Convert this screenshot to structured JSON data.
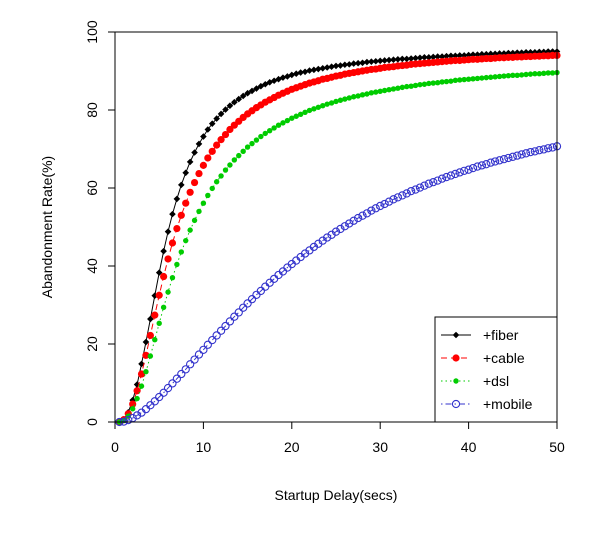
{
  "chart_data": {
    "type": "line",
    "title": "",
    "xlabel": "Startup Delay(secs)",
    "ylabel": "Abandonment Rate(%)",
    "xlim": [
      0,
      50
    ],
    "ylim": [
      0,
      100
    ],
    "x_ticks": [
      "0",
      "10",
      "20",
      "30",
      "40",
      "50"
    ],
    "y_ticks": [
      "0",
      "20",
      "40",
      "60",
      "80",
      "100"
    ],
    "x_tick_values": [
      0,
      10,
      20,
      30,
      40,
      50
    ],
    "y_tick_values": [
      0,
      20,
      40,
      60,
      80,
      100
    ],
    "grid": false,
    "legend_position": "bottom-right",
    "x": [
      0.5,
      1,
      1.5,
      2,
      2.5,
      3,
      3.5,
      4,
      4.5,
      5,
      5.5,
      6,
      6.5,
      7,
      7.5,
      8,
      8.5,
      9,
      9.5,
      10,
      10.5,
      11,
      11.5,
      12,
      12.5,
      13,
      13.5,
      14,
      14.5,
      15,
      15.5,
      16,
      16.5,
      17,
      17.5,
      18,
      18.5,
      19,
      19.5,
      20,
      20.5,
      21,
      21.5,
      22,
      22.5,
      23,
      23.5,
      24,
      24.5,
      25,
      25.5,
      26,
      26.5,
      27,
      27.5,
      28,
      28.5,
      29,
      29.5,
      30,
      30.5,
      31,
      31.5,
      32,
      32.5,
      33,
      33.5,
      34,
      34.5,
      35,
      35.5,
      36,
      36.5,
      37,
      37.5,
      38,
      38.5,
      39,
      39.5,
      40,
      40.5,
      41,
      41.5,
      42,
      42.5,
      43,
      43.5,
      44,
      44.5,
      45,
      45.5,
      46,
      46.5,
      47,
      47.5,
      48,
      48.5,
      49,
      49.5,
      50
    ],
    "series": [
      {
        "name": "+fiber",
        "color": "#000000",
        "line_style": "solid",
        "marker": "diamond",
        "values": [
          0.0,
          0.7,
          2.5,
          5.6,
          9.6,
          14.9,
          20.5,
          26.4,
          32.4,
          38.3,
          43.8,
          48.8,
          53.3,
          57.2,
          60.8,
          63.9,
          66.7,
          69.1,
          71.3,
          73.2,
          75.0,
          76.5,
          77.8,
          79.0,
          80.1,
          81.1,
          82.0,
          82.8,
          83.6,
          84.3,
          84.9,
          85.5,
          86.1,
          86.6,
          87.1,
          87.5,
          87.9,
          88.3,
          88.6,
          89.0,
          89.3,
          89.6,
          89.8,
          90.1,
          90.3,
          90.5,
          90.7,
          90.9,
          91.1,
          91.3,
          91.4,
          91.6,
          91.7,
          91.9,
          92.0,
          92.1,
          92.3,
          92.4,
          92.5,
          92.6,
          92.7,
          92.8,
          92.9,
          93.0,
          93.1,
          93.1,
          93.2,
          93.3,
          93.4,
          93.5,
          93.5,
          93.6,
          93.7,
          93.7,
          93.8,
          93.9,
          93.9,
          94.0,
          94.0,
          94.1,
          94.2,
          94.2,
          94.3,
          94.3,
          94.4,
          94.4,
          94.5,
          94.5,
          94.6,
          94.6,
          94.7,
          94.7,
          94.8,
          94.8,
          94.8,
          94.9,
          94.9,
          95.0,
          95.0,
          95.0
        ]
      },
      {
        "name": "+cable",
        "color": "#ff0000",
        "line_style": "dashed",
        "marker": "circle",
        "values": [
          0.0,
          0.6,
          2.1,
          4.6,
          8.0,
          12.3,
          17.1,
          22.2,
          27.4,
          32.5,
          37.3,
          41.8,
          45.9,
          49.6,
          53.0,
          56.1,
          58.9,
          61.4,
          63.7,
          65.8,
          67.7,
          69.4,
          71.0,
          72.4,
          73.7,
          75.0,
          76.1,
          77.1,
          78.1,
          79.0,
          79.8,
          80.6,
          81.3,
          82.0,
          82.6,
          83.2,
          83.8,
          84.3,
          84.8,
          85.3,
          85.7,
          86.1,
          86.5,
          86.9,
          87.2,
          87.5,
          87.9,
          88.1,
          88.4,
          88.7,
          88.9,
          89.2,
          89.4,
          89.6,
          89.8,
          90.0,
          90.2,
          90.4,
          90.5,
          90.7,
          90.9,
          91.0,
          91.1,
          91.3,
          91.4,
          91.5,
          91.7,
          91.8,
          91.9,
          92.0,
          92.1,
          92.2,
          92.3,
          92.4,
          92.5,
          92.6,
          92.7,
          92.7,
          92.8,
          92.9,
          93.0,
          93.0,
          93.1,
          93.2,
          93.2,
          93.3,
          93.4,
          93.4,
          93.5,
          93.5,
          93.6,
          93.6,
          93.7,
          93.7,
          93.8,
          93.8,
          93.9,
          93.9,
          94.0,
          94.0
        ]
      },
      {
        "name": "+dsl",
        "color": "#00cc00",
        "line_style": "dotted",
        "marker": "circle-small",
        "values": [
          0.0,
          0.4,
          1.5,
          3.4,
          6.0,
          9.2,
          12.9,
          16.9,
          21.1,
          25.3,
          29.4,
          33.3,
          37.0,
          40.4,
          43.6,
          46.5,
          49.2,
          51.7,
          54.0,
          56.1,
          58.1,
          59.9,
          61.6,
          63.1,
          64.6,
          65.9,
          67.2,
          68.3,
          69.4,
          70.5,
          71.4,
          72.3,
          73.2,
          74.0,
          74.7,
          75.4,
          76.1,
          76.7,
          77.3,
          77.9,
          78.4,
          78.9,
          79.4,
          79.9,
          80.3,
          80.7,
          81.1,
          81.5,
          81.8,
          82.2,
          82.5,
          82.8,
          83.1,
          83.4,
          83.6,
          83.9,
          84.1,
          84.4,
          84.6,
          84.8,
          85.0,
          85.2,
          85.4,
          85.6,
          85.8,
          86.0,
          86.1,
          86.3,
          86.5,
          86.6,
          86.8,
          86.9,
          87.0,
          87.2,
          87.3,
          87.4,
          87.6,
          87.7,
          87.8,
          87.9,
          88.0,
          88.1,
          88.2,
          88.3,
          88.4,
          88.5,
          88.6,
          88.7,
          88.8,
          88.9,
          88.9,
          89.0,
          89.1,
          89.2,
          89.3,
          89.3,
          89.4,
          89.5,
          89.5,
          89.6
        ]
      },
      {
        "name": "+mobile",
        "color": "#3333cc",
        "line_style": "dashdot",
        "marker": "open-circle",
        "values": [
          0.0,
          0.1,
          0.5,
          1.0,
          1.7,
          2.4,
          3.3,
          4.3,
          5.3,
          6.4,
          7.5,
          8.7,
          9.9,
          11.1,
          12.3,
          13.5,
          14.8,
          16.0,
          17.3,
          18.5,
          19.8,
          21.0,
          22.2,
          23.4,
          24.6,
          25.8,
          27.0,
          28.1,
          29.3,
          30.4,
          31.5,
          32.6,
          33.6,
          34.7,
          35.7,
          36.7,
          37.7,
          38.6,
          39.6,
          40.5,
          41.4,
          42.3,
          43.2,
          44.0,
          44.9,
          45.7,
          46.5,
          47.3,
          48.0,
          48.8,
          49.5,
          50.2,
          50.9,
          51.6,
          52.3,
          52.9,
          53.5,
          54.2,
          54.8,
          55.4,
          55.9,
          56.5,
          57.1,
          57.6,
          58.1,
          58.6,
          59.2,
          59.6,
          60.1,
          60.6,
          61.1,
          61.5,
          61.9,
          62.4,
          62.8,
          63.2,
          63.6,
          64.0,
          64.4,
          64.7,
          65.1,
          65.5,
          65.8,
          66.1,
          66.5,
          66.8,
          67.1,
          67.4,
          67.7,
          68.0,
          68.3,
          68.6,
          68.9,
          69.2,
          69.4,
          69.7,
          69.9,
          70.2,
          70.4,
          70.7
        ]
      }
    ]
  }
}
